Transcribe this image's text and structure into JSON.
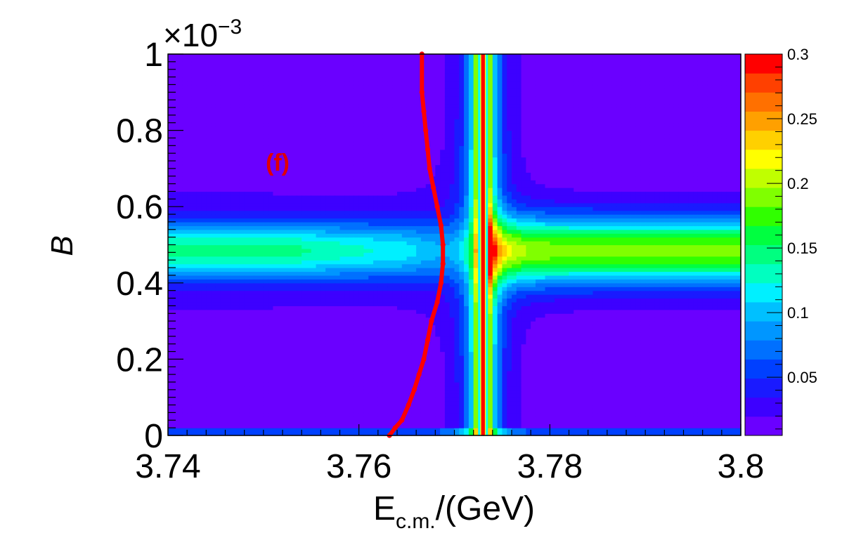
{
  "chart_data": {
    "type": "heatmap",
    "panel_label": "(f)",
    "xlabel_main": "E",
    "xlabel_sub": "c.m.",
    "xlabel_tail": "/(GeV)",
    "ylabel": "B",
    "y_exponent_base": "×10",
    "y_exponent_power": "−3",
    "xlim": [
      3.74,
      3.8
    ],
    "ylim": [
      0,
      1
    ],
    "x_ticks": [
      3.74,
      3.76,
      3.78,
      3.8
    ],
    "x_tick_labels": [
      "3.74",
      "3.76",
      "3.78",
      "3.8"
    ],
    "y_ticks": [
      0,
      0.2,
      0.4,
      0.6,
      0.8,
      1
    ],
    "y_tick_labels": [
      "0",
      "0.2",
      "0.4",
      "0.6",
      "0.8",
      "1"
    ],
    "z_range": [
      0.005,
      0.3
    ],
    "colorbar_ticks": [
      0.05,
      0.1,
      0.15,
      0.2,
      0.25,
      0.3
    ],
    "colorbar_tick_labels": [
      "0.05",
      "0.1",
      "0.15",
      "0.2",
      "0.25",
      "0.3"
    ],
    "palette": [
      "#6a00ff",
      "#3d00ff",
      "#1a1aff",
      "#0040ff",
      "#0070ff",
      "#0096ff",
      "#00c0ff",
      "#00f0ff",
      "#00ffc0",
      "#00ff80",
      "#00ff40",
      "#30ff00",
      "#80ff00",
      "#c0ff00",
      "#ffff00",
      "#ffd000",
      "#ffa000",
      "#ff7000",
      "#ff4000",
      "#ff0000"
    ],
    "heatmap_model": {
      "band_center_B": 0.485,
      "resonance_E": 3.773,
      "resonance_halfwidth": 0.0006
    },
    "overlay_series": {
      "name": "",
      "color": "#ff0000",
      "x": [
        3.7632,
        3.7638,
        3.7645,
        3.7652,
        3.7658,
        3.7663,
        3.7668,
        3.7672,
        3.7676,
        3.7682,
        3.7686,
        3.7688,
        3.7688,
        3.7686,
        3.7682,
        3.7678,
        3.7674,
        3.7672,
        3.767,
        3.7668,
        3.7666,
        3.7666
      ],
      "y": [
        0.0,
        0.02,
        0.04,
        0.08,
        0.12,
        0.16,
        0.2,
        0.25,
        0.3,
        0.35,
        0.4,
        0.45,
        0.5,
        0.55,
        0.6,
        0.65,
        0.7,
        0.75,
        0.8,
        0.85,
        0.9,
        1.0
      ]
    },
    "resonance_line": {
      "x": 3.773,
      "color": "#ff0000"
    }
  }
}
